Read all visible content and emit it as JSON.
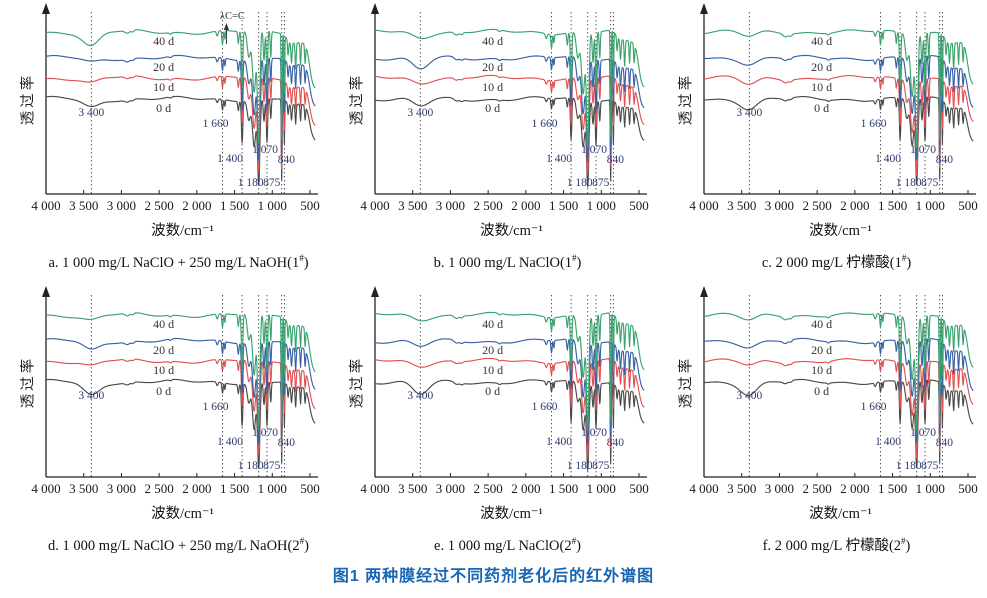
{
  "chart_data": {
    "type": "line",
    "title": "图1  两种膜经过不同药剂老化后的红外谱图",
    "xlabel": "波数/cm⁻¹",
    "ylabel": "透过率",
    "x_axis": {
      "label": "波数/cm⁻¹",
      "min": 500,
      "max": 4000,
      "reversed": true,
      "ticks": [
        4000,
        3500,
        3000,
        2500,
        2000,
        1500,
        1000,
        500
      ],
      "tick_labels": [
        "4 000",
        "3 500",
        "3 000",
        "2 500",
        "2 000",
        "1 500",
        "1 000",
        "500"
      ]
    },
    "y_axis": {
      "label": "透过率",
      "tick_labels": []
    },
    "legend_position": "inline-on-curves",
    "grid": false,
    "series": [
      {
        "name": "0 d",
        "color": "#4a4a4a"
      },
      {
        "name": "10 d",
        "color": "#e25253"
      },
      {
        "name": "20 d",
        "color": "#3a62a6"
      },
      {
        "name": "40 d",
        "color": "#3aa36e"
      }
    ],
    "peak_markers": [
      {
        "wavenumber": 3400,
        "label": "3 400"
      },
      {
        "wavenumber": 1660,
        "label": "1 660"
      },
      {
        "wavenumber": 1400,
        "label": "1 400"
      },
      {
        "wavenumber": 1180,
        "label": "1 180"
      },
      {
        "wavenumber": 1070,
        "label": "1 070"
      },
      {
        "wavenumber": 875,
        "label": "875"
      },
      {
        "wavenumber": 840,
        "label": "840"
      }
    ],
    "panels": [
      {
        "id": "a",
        "caption": "a. 1 000 mg/L NaClO + 250 mg/L NaOH(1#)",
        "annotation": {
          "text": "λC=C",
          "wavenumber": 1608
        },
        "oh_dip_depths": {
          "0 d": 8,
          "10 d": 5,
          "20 d": 4,
          "40 d": 14
        },
        "seed": 1
      },
      {
        "id": "b",
        "caption": "b. 1 000 mg/L NaClO(1#)",
        "oh_dip_depths": {
          "0 d": 8,
          "10 d": 4,
          "20 d": 12,
          "40 d": 5
        },
        "seed": 2
      },
      {
        "id": "c",
        "caption": "c. 2 000 mg/L 柠檬酸(1#)",
        "oh_dip_depths": {
          "0 d": 9,
          "10 d": 7,
          "20 d": 5,
          "40 d": 5
        },
        "seed": 3
      },
      {
        "id": "d",
        "caption": "d. 1 000 mg/L NaClO + 250 mg/L NaOH(2#)",
        "oh_dip_depths": {
          "0 d": 13,
          "10 d": 5,
          "20 d": 9,
          "40 d": 5
        },
        "seed": 4
      },
      {
        "id": "e",
        "caption": "e. 1 000 mg/L NaClO(2#)",
        "oh_dip_depths": {
          "0 d": 13,
          "10 d": 4,
          "20 d": 6,
          "40 d": 4
        },
        "seed": 5
      },
      {
        "id": "f",
        "caption": "f. 2 000 mg/L 柠檬酸(2#)",
        "oh_dip_depths": {
          "0 d": 12,
          "10 d": 5,
          "20 d": 5,
          "40 d": 6
        },
        "seed": 6
      }
    ]
  }
}
